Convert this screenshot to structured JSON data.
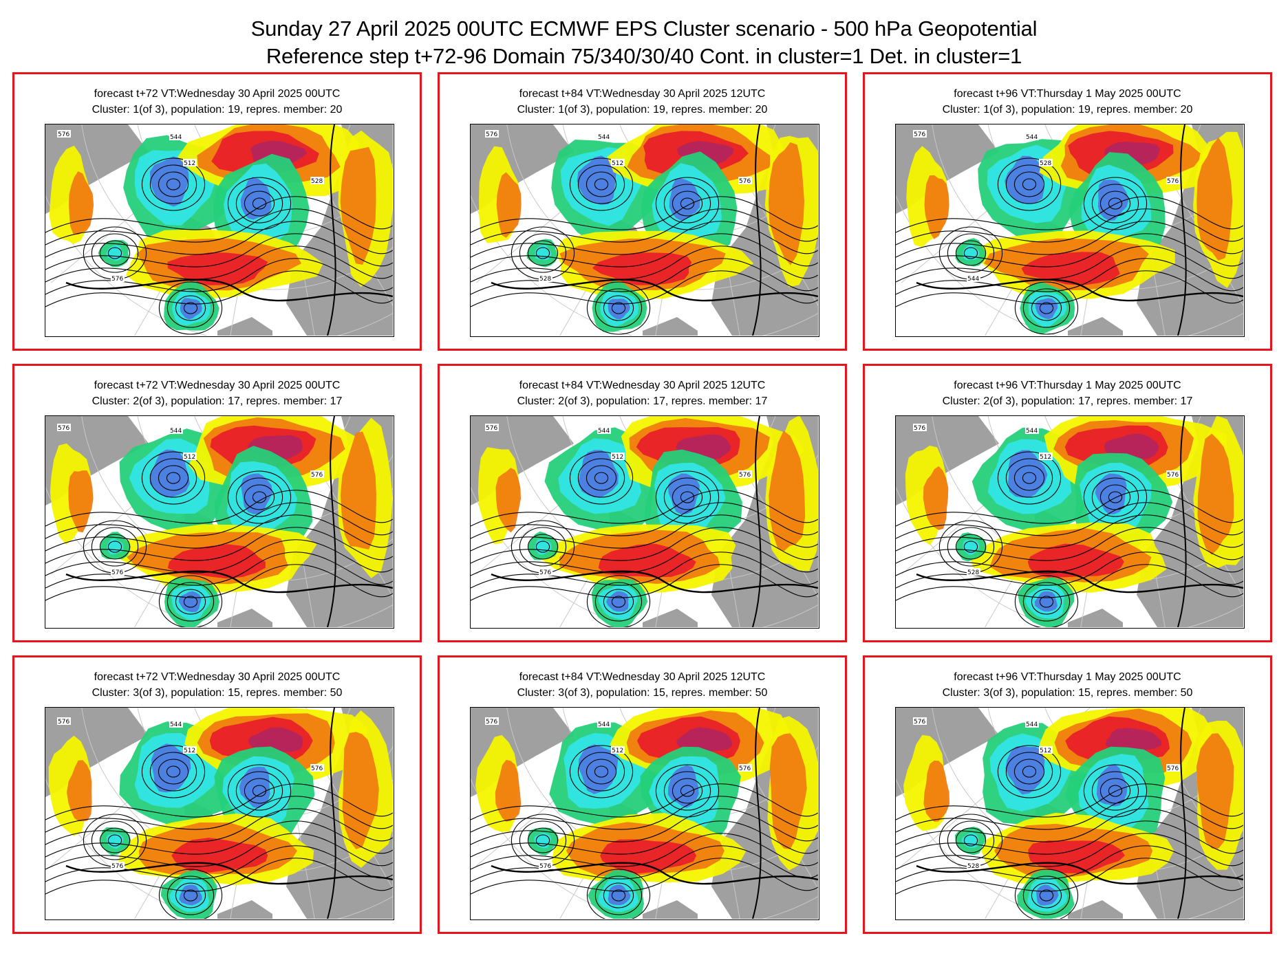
{
  "title": {
    "line1": "Sunday 27 April 2025 00UTC ECMWF EPS Cluster scenario - 500 hPa Geopotential",
    "line2": "Reference step t+72-96 Domain 75/340/30/40 Cont. in cluster=1 Det. in cluster=1"
  },
  "palette": {
    "land": "#a0a0a0",
    "strong_low": "#4e7be0",
    "low": "#33e5e5",
    "weak_low": "#25d07a",
    "weak_high": "#f5f500",
    "high": "#f07c10",
    "strong_high": "#e8202a",
    "extreme_high": "#b4245c",
    "frame": "#e8141b"
  },
  "panels": [
    {
      "line1": "forecast t+72 VT:Wednesday 30 April 2025 00UTC",
      "line2": "Cluster: 1(of 3), population: 19, repres. member: 20",
      "labels": [
        "576",
        "544",
        "512",
        "576",
        "528"
      ]
    },
    {
      "line1": "forecast t+84 VT:Wednesday 30 April 2025 12UTC",
      "line2": "Cluster: 1(of 3), population: 19, repres. member: 20",
      "labels": [
        "576",
        "544",
        "512",
        "528",
        "576"
      ]
    },
    {
      "line1": "forecast t+96 VT:Thursday 1 May 2025 00UTC",
      "line2": "Cluster: 1(of 3), population: 19, repres. member: 20",
      "labels": [
        "576",
        "544",
        "528",
        "544",
        "576"
      ]
    },
    {
      "line1": "forecast t+72 VT:Wednesday 30 April 2025 00UTC",
      "line2": "Cluster: 2(of 3), population: 17, repres. member: 17",
      "labels": [
        "576",
        "544",
        "512",
        "576",
        "576"
      ]
    },
    {
      "line1": "forecast t+84 VT:Wednesday 30 April 2025 12UTC",
      "line2": "Cluster: 2(of 3), population: 17, repres. member: 17",
      "labels": [
        "576",
        "544",
        "512",
        "576",
        "576"
      ]
    },
    {
      "line1": "forecast t+96 VT:Thursday 1 May 2025 00UTC",
      "line2": "Cluster: 2(of 3), population: 17, repres. member: 17",
      "labels": [
        "576",
        "544",
        "512",
        "528",
        "576"
      ]
    },
    {
      "line1": "forecast t+72 VT:Wednesday 30 April 2025 00UTC",
      "line2": "Cluster: 3(of 3), population: 15, repres. member: 50",
      "labels": [
        "576",
        "544",
        "512",
        "576",
        "576"
      ]
    },
    {
      "line1": "forecast t+84 VT:Wednesday 30 April 2025 12UTC",
      "line2": "Cluster: 3(of 3), population: 15, repres. member: 50",
      "labels": [
        "576",
        "544",
        "512",
        "576",
        "576"
      ]
    },
    {
      "line1": "forecast t+96 VT:Thursday 1 May 2025 00UTC",
      "line2": "Cluster: 3(of 3), population: 15, repres. member: 50",
      "labels": [
        "576",
        "544",
        "512",
        "528",
        "576"
      ]
    }
  ]
}
